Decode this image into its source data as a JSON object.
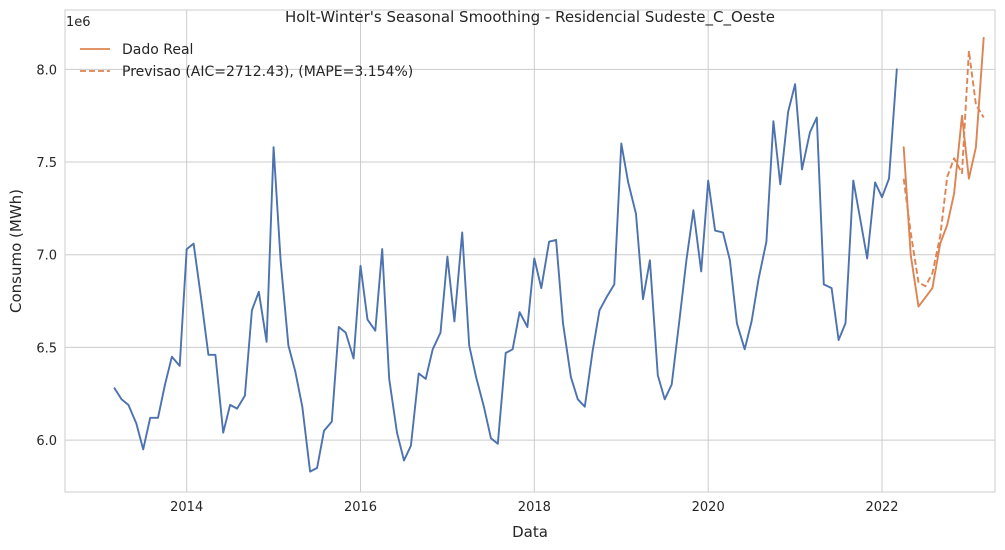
{
  "chart_data": {
    "type": "line",
    "title": "Holt-Winter's Seasonal Smoothing - Residencial Sudeste_C_Oeste",
    "xlabel": "Data",
    "ylabel": "Consumo (MWh)",
    "y_scale_label": "1e6",
    "xlim": [
      2012.6,
      2023.3
    ],
    "ylim": [
      5.72,
      8.32
    ],
    "x_ticks": [
      2014,
      2016,
      2018,
      2020,
      2022
    ],
    "x_tick_labels": [
      "2014",
      "2016",
      "2018",
      "2020",
      "2022"
    ],
    "y_ticks": [
      6.0,
      6.5,
      7.0,
      7.5,
      8.0
    ],
    "y_tick_labels": [
      "6.0",
      "6.5",
      "7.0",
      "7.5",
      "8.0"
    ],
    "grid": true,
    "legend_position": "top-left",
    "series": [
      {
        "name": "",
        "color": "#4c72b0",
        "style": "solid",
        "x": [
          2013.17,
          2013.25,
          2013.33,
          2013.42,
          2013.5,
          2013.58,
          2013.67,
          2013.75,
          2013.83,
          2013.92,
          2014.0,
          2014.08,
          2014.17,
          2014.25,
          2014.33,
          2014.42,
          2014.5,
          2014.58,
          2014.67,
          2014.75,
          2014.83,
          2014.92,
          2015.0,
          2015.08,
          2015.17,
          2015.25,
          2015.33,
          2015.42,
          2015.5,
          2015.58,
          2015.67,
          2015.75,
          2015.83,
          2015.92,
          2016.0,
          2016.08,
          2016.17,
          2016.25,
          2016.33,
          2016.42,
          2016.5,
          2016.58,
          2016.67,
          2016.75,
          2016.83,
          2016.92,
          2017.0,
          2017.08,
          2017.17,
          2017.25,
          2017.33,
          2017.42,
          2017.5,
          2017.58,
          2017.67,
          2017.75,
          2017.83,
          2017.92,
          2018.0,
          2018.08,
          2018.17,
          2018.25,
          2018.33,
          2018.42,
          2018.5,
          2018.58,
          2018.67,
          2018.75,
          2018.83,
          2018.92,
          2019.0,
          2019.08,
          2019.17,
          2019.25,
          2019.33,
          2019.42,
          2019.5,
          2019.58,
          2019.67,
          2019.75,
          2019.83,
          2019.92,
          2020.0,
          2020.08,
          2020.17,
          2020.25,
          2020.33,
          2020.42,
          2020.5,
          2020.58,
          2020.67,
          2020.75,
          2020.83,
          2020.92,
          2021.0,
          2021.08,
          2021.17,
          2021.25,
          2021.33,
          2021.42,
          2021.5,
          2021.58,
          2021.67,
          2021.75,
          2021.83,
          2021.92,
          2022.0,
          2022.08,
          2022.17
        ],
        "y": [
          6.28,
          6.22,
          6.19,
          6.09,
          5.95,
          6.12,
          6.12,
          6.3,
          6.45,
          6.4,
          7.03,
          7.06,
          6.75,
          6.46,
          6.46,
          6.04,
          6.19,
          6.17,
          6.24,
          6.7,
          6.8,
          6.53,
          7.58,
          6.97,
          6.51,
          6.37,
          6.18,
          5.83,
          5.85,
          6.05,
          6.1,
          6.61,
          6.58,
          6.44,
          6.94,
          6.65,
          6.59,
          7.03,
          6.33,
          6.04,
          5.89,
          5.97,
          6.36,
          6.33,
          6.49,
          6.58,
          6.99,
          6.64,
          7.12,
          6.51,
          6.34,
          6.18,
          6.01,
          5.98,
          6.47,
          6.49,
          6.69,
          6.61,
          6.98,
          6.82,
          7.07,
          7.08,
          6.63,
          6.34,
          6.22,
          6.18,
          6.48,
          6.7,
          6.77,
          6.84,
          7.6,
          7.39,
          7.22,
          6.76,
          6.97,
          6.35,
          6.22,
          6.3,
          6.65,
          6.97,
          7.24,
          6.91,
          7.4,
          7.13,
          7.12,
          6.97,
          6.63,
          6.49,
          6.64,
          6.87,
          7.07,
          7.72,
          7.38,
          7.77,
          7.92,
          7.46,
          7.66,
          7.74,
          6.84,
          6.82,
          6.54,
          6.63,
          7.4,
          7.19,
          6.98,
          7.39,
          7.31,
          7.41,
          8.0
        ]
      },
      {
        "name": "Dado Real",
        "color": "#dd8452",
        "style": "solid",
        "x": [
          2022.25,
          2022.33,
          2022.42,
          2022.5,
          2022.58,
          2022.67,
          2022.75,
          2022.83,
          2022.92,
          2023.0,
          2023.08,
          2023.17
        ],
        "y": [
          7.58,
          7.0,
          6.72,
          6.77,
          6.82,
          7.06,
          7.16,
          7.33,
          7.75,
          7.41,
          7.58,
          8.17
        ]
      },
      {
        "name": "Previsao (AIC=2712.43), (MAPE=3.154%)",
        "color": "#dd8452",
        "style": "dashed",
        "x": [
          2022.25,
          2022.33,
          2022.42,
          2022.5,
          2022.58,
          2022.67,
          2022.75,
          2022.83,
          2022.92,
          2023.0,
          2023.08,
          2023.17
        ],
        "y": [
          7.41,
          7.12,
          6.85,
          6.83,
          6.9,
          7.1,
          7.42,
          7.52,
          7.44,
          8.1,
          7.81,
          7.74
        ]
      }
    ]
  }
}
